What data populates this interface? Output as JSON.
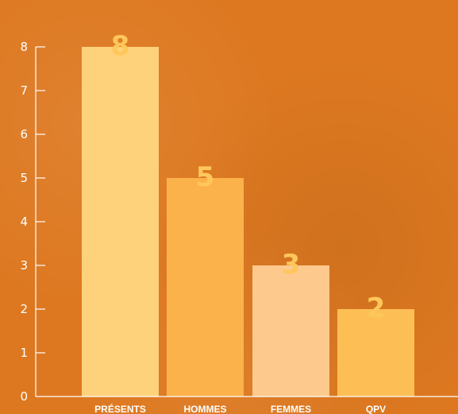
{
  "chart_data": {
    "type": "bar",
    "categories": [
      "PRÉSENTS",
      "HOMMES",
      "FEMMES",
      "QPV"
    ],
    "values": [
      8,
      5,
      3,
      2
    ],
    "data_labels": [
      "8",
      "5",
      "3",
      "2"
    ],
    "title": "",
    "xlabel": "",
    "ylabel": "",
    "ylim": [
      0,
      8
    ],
    "yticks": [
      0,
      1,
      2,
      3,
      4,
      5,
      6,
      7,
      8
    ],
    "grid": false,
    "legend": "none",
    "colors": [
      "#fed27a",
      "#fcb24a",
      "#fec98c",
      "#fdbf55"
    ],
    "background_color": "#dd7820",
    "axis_color": "#ffffff",
    "label_color": "#ffc75a"
  }
}
